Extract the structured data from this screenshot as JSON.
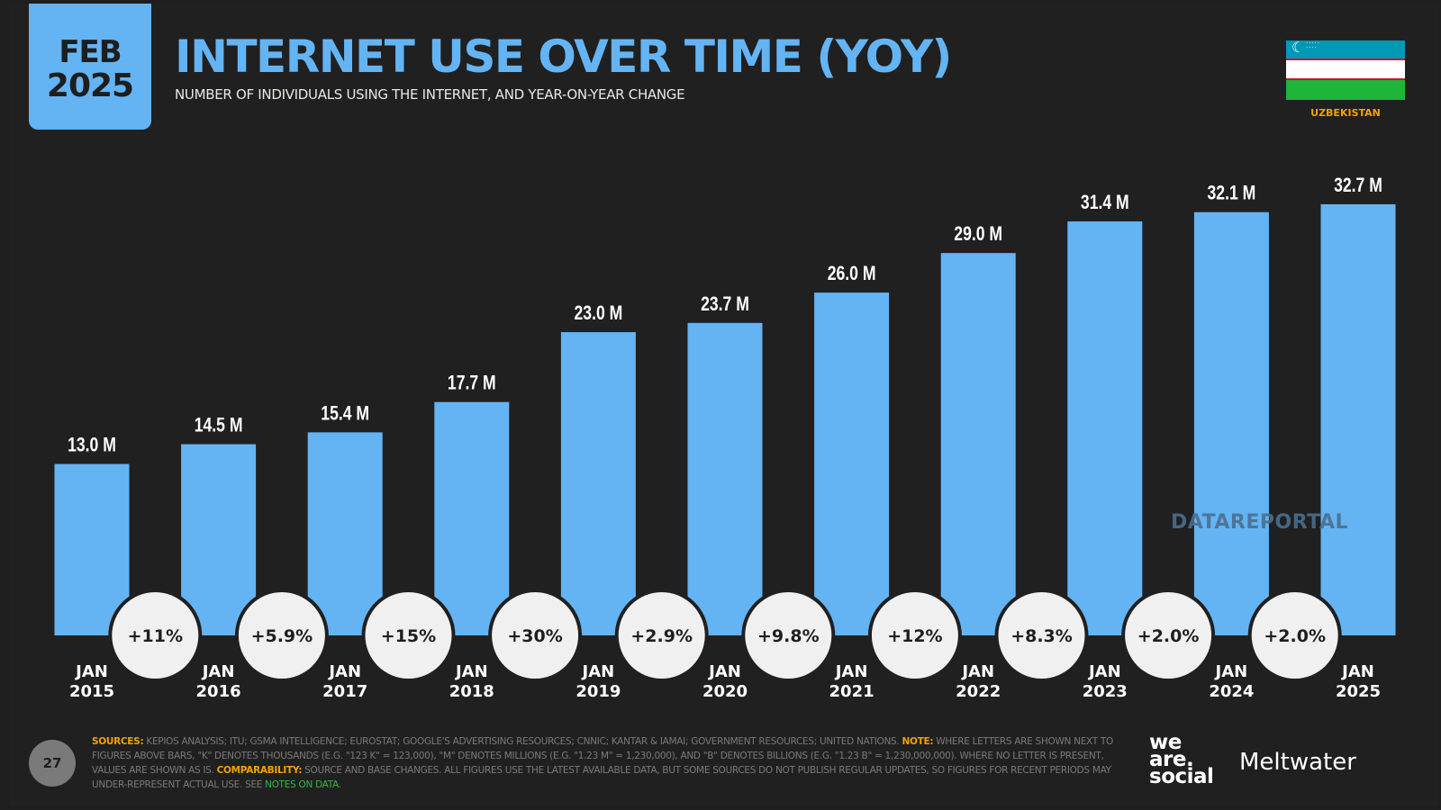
{
  "header": {
    "month": "FEB",
    "year": "2025",
    "title": "INTERNET USE OVER TIME (YOY)",
    "subtitle": "NUMBER OF INDIVIDUALS USING THE INTERNET, AND YEAR-ON-YEAR CHANGE",
    "country": "UZBEKISTAN",
    "flag_colors": [
      "#0099b5",
      "#ffffff",
      "#1eb53a"
    ]
  },
  "colors": {
    "bar": "#64b4f4",
    "background": "#202020",
    "badge": "#f0f0f0",
    "accent": "#f5a100"
  },
  "chart_data": {
    "type": "bar",
    "title": "INTERNET USE OVER TIME (YOY)",
    "categories": [
      [
        "JAN",
        "2015"
      ],
      [
        "JAN",
        "2016"
      ],
      [
        "JAN",
        "2017"
      ],
      [
        "JAN",
        "2018"
      ],
      [
        "JAN",
        "2019"
      ],
      [
        "JAN",
        "2020"
      ],
      [
        "JAN",
        "2021"
      ],
      [
        "JAN",
        "2022"
      ],
      [
        "JAN",
        "2023"
      ],
      [
        "JAN",
        "2024"
      ],
      [
        "JAN",
        "2025"
      ]
    ],
    "values": [
      13.0,
      14.5,
      15.4,
      17.7,
      23.0,
      23.7,
      26.0,
      29.0,
      31.4,
      32.1,
      32.7
    ],
    "value_labels": [
      "13.0 M",
      "14.5 M",
      "15.4 M",
      "17.7 M",
      "23.0 M",
      "23.7 M",
      "26.0 M",
      "29.0 M",
      "31.4 M",
      "32.1 M",
      "32.7 M"
    ],
    "yoy_change": [
      "+11%",
      "+5.9%",
      "+15%",
      "+30%",
      "+2.9%",
      "+9.8%",
      "+12%",
      "+8.3%",
      "+2.0%",
      "+2.0%"
    ],
    "unit": "M",
    "ylim": [
      0,
      32.7
    ],
    "grid": false,
    "legend": "none"
  },
  "watermark": "DATAREPORTAL",
  "footer": {
    "page_number": "27",
    "sources_label": "SOURCES:",
    "sources_text": " KEPIOS ANALYSIS; ITU; GSMA INTELLIGENCE; EUROSTAT; GOOGLE'S ADVERTISING RESOURCES; CNNIC; KANTAR & IAMAI; GOVERNMENT RESOURCES; UNITED NATIONS. ",
    "note_label": "NOTE:",
    "note_text": " WHERE LETTERS ARE SHOWN NEXT TO FIGURES ABOVE BARS, \"K\" DENOTES THOUSANDS (E.G. \"123 K\" = 123,000), \"M\" DENOTES MILLIONS (E.G. \"1.23 M\" = 1,230,000), AND \"B\" DENOTES BILLIONS (E.G. \"1.23 B\" = 1,230,000,000). WHERE NO LETTER IS PRESENT, VALUES ARE SHOWN AS IS. ",
    "comparability_label": "COMPARABILITY:",
    "comparability_text": " SOURCE AND BASE CHANGES. ALL FIGURES USE THE LATEST AVAILABLE DATA, BUT SOME SOURCES DO NOT PUBLISH REGULAR UPDATES, SO FIGURES FOR RECENT PERIODS MAY UNDER-REPRESENT ACTUAL USE. SEE ",
    "notes_link": "NOTES ON DATA",
    "notes_end": ".",
    "logo1": "we are social",
    "logo2": "Meltwater"
  }
}
